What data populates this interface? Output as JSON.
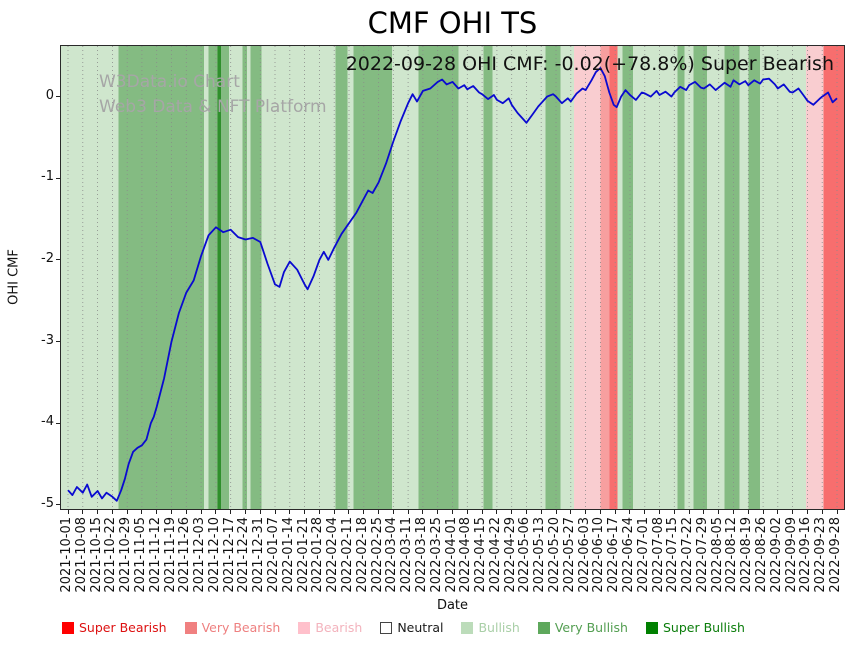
{
  "chart_data": {
    "type": "line",
    "title": "CMF OHI TS",
    "xlabel": "Date",
    "ylabel": "OHI CMF",
    "annotation": "2022-09-28 OHI CMF: -0.02(+78.8%) Super Bearish",
    "as_of_date": "2022-09-28",
    "current_value": -0.02,
    "change_percent": "+78.8%",
    "current_sentiment": "Super Bearish",
    "watermark": {
      "line1": "W3Data.io Chart",
      "line2": "Web3 Data & NFT Platform"
    },
    "ylim": [
      -5.05,
      0.62
    ],
    "yticks": [
      0,
      -1,
      -2,
      -3,
      -4,
      -5
    ],
    "grid": "vertical dotted gridline at every date tick",
    "legend_position": "bottom",
    "x_tick_labels": [
      "2021-10-01",
      "2021-10-08",
      "2021-10-15",
      "2021-10-22",
      "2021-10-29",
      "2021-11-05",
      "2021-11-12",
      "2021-11-19",
      "2021-11-26",
      "2021-12-03",
      "2021-12-10",
      "2021-12-17",
      "2021-12-24",
      "2021-12-31",
      "2022-01-07",
      "2022-01-14",
      "2022-01-21",
      "2022-01-28",
      "2022-02-04",
      "2022-02-11",
      "2022-02-18",
      "2022-02-25",
      "2022-03-04",
      "2022-03-11",
      "2022-03-18",
      "2022-03-25",
      "2022-04-01",
      "2022-04-08",
      "2022-04-15",
      "2022-04-22",
      "2022-04-29",
      "2022-05-06",
      "2022-05-13",
      "2022-05-20",
      "2022-05-27",
      "2022-06-03",
      "2022-06-10",
      "2022-06-17",
      "2022-06-24",
      "2022-07-01",
      "2022-07-08",
      "2022-07-15",
      "2022-07-22",
      "2022-07-29",
      "2022-08-05",
      "2022-08-12",
      "2022-08-19",
      "2022-08-26",
      "2022-09-02",
      "2022-09-09",
      "2022-09-16",
      "2022-09-23",
      "2022-09-28"
    ],
    "series": [
      {
        "name": "OHI CMF",
        "color": "#0a0ad0",
        "points": [
          [
            0,
            -4.82
          ],
          [
            0.3,
            -4.88
          ],
          [
            0.6,
            -4.78
          ],
          [
            1,
            -4.85
          ],
          [
            1.3,
            -4.75
          ],
          [
            1.6,
            -4.9
          ],
          [
            2,
            -4.83
          ],
          [
            2.3,
            -4.92
          ],
          [
            2.6,
            -4.85
          ],
          [
            3,
            -4.9
          ],
          [
            3.3,
            -4.95
          ],
          [
            3.6,
            -4.82
          ],
          [
            3.85,
            -4.68
          ],
          [
            4.1,
            -4.5
          ],
          [
            4.4,
            -4.35
          ],
          [
            4.7,
            -4.3
          ],
          [
            5,
            -4.27
          ],
          [
            5.3,
            -4.2
          ],
          [
            5.6,
            -4.0
          ],
          [
            5.8,
            -3.92
          ],
          [
            6,
            -3.8
          ],
          [
            6.5,
            -3.45
          ],
          [
            7,
            -3.0
          ],
          [
            7.5,
            -2.65
          ],
          [
            8,
            -2.4
          ],
          [
            8.5,
            -2.25
          ],
          [
            9,
            -1.95
          ],
          [
            9.5,
            -1.7
          ],
          [
            10,
            -1.6
          ],
          [
            10.5,
            -1.66
          ],
          [
            11,
            -1.63
          ],
          [
            11.5,
            -1.72
          ],
          [
            12,
            -1.75
          ],
          [
            12.5,
            -1.73
          ],
          [
            13,
            -1.78
          ],
          [
            13.5,
            -2.05
          ],
          [
            14,
            -2.3
          ],
          [
            14.3,
            -2.33
          ],
          [
            14.6,
            -2.15
          ],
          [
            15,
            -2.02
          ],
          [
            15.5,
            -2.12
          ],
          [
            16,
            -2.3
          ],
          [
            16.2,
            -2.36
          ],
          [
            16.6,
            -2.2
          ],
          [
            17,
            -2.0
          ],
          [
            17.3,
            -1.9
          ],
          [
            17.6,
            -2.0
          ],
          [
            18,
            -1.85
          ],
          [
            18.5,
            -1.68
          ],
          [
            19,
            -1.55
          ],
          [
            19.5,
            -1.42
          ],
          [
            20,
            -1.25
          ],
          [
            20.3,
            -1.15
          ],
          [
            20.6,
            -1.18
          ],
          [
            21,
            -1.05
          ],
          [
            21.5,
            -0.82
          ],
          [
            22,
            -0.55
          ],
          [
            22.5,
            -0.3
          ],
          [
            23,
            -0.08
          ],
          [
            23.3,
            0.03
          ],
          [
            23.6,
            -0.06
          ],
          [
            24,
            0.07
          ],
          [
            24.5,
            0.1
          ],
          [
            25,
            0.18
          ],
          [
            25.3,
            0.21
          ],
          [
            25.6,
            0.15
          ],
          [
            26,
            0.18
          ],
          [
            26.4,
            0.1
          ],
          [
            26.8,
            0.14
          ],
          [
            27,
            0.09
          ],
          [
            27.4,
            0.13
          ],
          [
            27.8,
            0.05
          ],
          [
            28,
            0.03
          ],
          [
            28.4,
            -0.03
          ],
          [
            28.8,
            0.02
          ],
          [
            29,
            -0.04
          ],
          [
            29.4,
            -0.08
          ],
          [
            29.8,
            -0.02
          ],
          [
            30,
            -0.1
          ],
          [
            30.4,
            -0.2
          ],
          [
            30.8,
            -0.28
          ],
          [
            31,
            -0.32
          ],
          [
            31.4,
            -0.22
          ],
          [
            31.8,
            -0.12
          ],
          [
            32,
            -0.08
          ],
          [
            32.4,
            0
          ],
          [
            32.8,
            0.03
          ],
          [
            33,
            0
          ],
          [
            33.4,
            -0.08
          ],
          [
            33.8,
            -0.02
          ],
          [
            34,
            -0.06
          ],
          [
            34.4,
            0.04
          ],
          [
            34.8,
            0.1
          ],
          [
            35,
            0.08
          ],
          [
            35.4,
            0.2
          ],
          [
            35.7,
            0.3
          ],
          [
            36,
            0.35
          ],
          [
            36.3,
            0.25
          ],
          [
            36.6,
            0.05
          ],
          [
            36.9,
            -0.1
          ],
          [
            37.1,
            -0.13
          ],
          [
            37.4,
            0
          ],
          [
            37.7,
            0.08
          ],
          [
            38,
            0.02
          ],
          [
            38.4,
            -0.04
          ],
          [
            38.8,
            0.05
          ],
          [
            39,
            0.04
          ],
          [
            39.4,
            0
          ],
          [
            39.8,
            0.07
          ],
          [
            40,
            0.02
          ],
          [
            40.4,
            0.06
          ],
          [
            40.8,
            0
          ],
          [
            41,
            0.05
          ],
          [
            41.4,
            0.12
          ],
          [
            41.8,
            0.08
          ],
          [
            42,
            0.14
          ],
          [
            42.4,
            0.18
          ],
          [
            42.8,
            0.11
          ],
          [
            43,
            0.1
          ],
          [
            43.4,
            0.15
          ],
          [
            43.8,
            0.08
          ],
          [
            44,
            0.11
          ],
          [
            44.4,
            0.17
          ],
          [
            44.8,
            0.12
          ],
          [
            45,
            0.2
          ],
          [
            45.4,
            0.15
          ],
          [
            45.8,
            0.19
          ],
          [
            46,
            0.14
          ],
          [
            46.4,
            0.2
          ],
          [
            46.8,
            0.16
          ],
          [
            47,
            0.21
          ],
          [
            47.4,
            0.22
          ],
          [
            47.8,
            0.15
          ],
          [
            48,
            0.1
          ],
          [
            48.4,
            0.15
          ],
          [
            48.8,
            0.06
          ],
          [
            49,
            0.05
          ],
          [
            49.4,
            0.1
          ],
          [
            49.8,
            0
          ],
          [
            50,
            -0.05
          ],
          [
            50.4,
            -0.1
          ],
          [
            50.8,
            -0.03
          ],
          [
            51,
            0
          ],
          [
            51.4,
            0.05
          ],
          [
            51.7,
            -0.07
          ],
          [
            52,
            -0.02
          ]
        ]
      }
    ],
    "band_colors": {
      "bullish": "#cfe6cd",
      "very_bullish": "#84bb82",
      "super_bullish": "#2f8f2c",
      "bearish": "#f9cdd0",
      "very_bearish": "#f79f9f",
      "super_bearish": "#f76e6e"
    },
    "background_bands": [
      [
        0,
        3.4,
        "bullish"
      ],
      [
        3.4,
        9.2,
        "very_bullish"
      ],
      [
        9.2,
        9.5,
        "bullish"
      ],
      [
        9.5,
        10.1,
        "very_bullish"
      ],
      [
        10.1,
        10.35,
        "super_bullish"
      ],
      [
        10.35,
        10.9,
        "very_bullish"
      ],
      [
        10.9,
        11.8,
        "bullish"
      ],
      [
        11.8,
        12.1,
        "very_bullish"
      ],
      [
        12.1,
        12.35,
        "bullish"
      ],
      [
        12.35,
        13.1,
        "very_bullish"
      ],
      [
        13.1,
        18.1,
        "bullish"
      ],
      [
        18.1,
        18.9,
        "very_bullish"
      ],
      [
        18.9,
        19.3,
        "bullish"
      ],
      [
        19.3,
        21.9,
        "very_bullish"
      ],
      [
        21.9,
        23.7,
        "bullish"
      ],
      [
        23.7,
        26.4,
        "very_bullish"
      ],
      [
        26.4,
        28.1,
        "bullish"
      ],
      [
        28.1,
        28.7,
        "very_bullish"
      ],
      [
        28.7,
        32.3,
        "bullish"
      ],
      [
        32.3,
        33.3,
        "very_bullish"
      ],
      [
        33.3,
        34.2,
        "bullish"
      ],
      [
        34.2,
        36.0,
        "bearish"
      ],
      [
        36.0,
        36.6,
        "very_bearish"
      ],
      [
        36.6,
        37.15,
        "super_bearish"
      ],
      [
        37.15,
        37.5,
        "bullish"
      ],
      [
        37.5,
        38.2,
        "very_bullish"
      ],
      [
        38.2,
        41.2,
        "bullish"
      ],
      [
        41.2,
        41.7,
        "very_bullish"
      ],
      [
        41.7,
        42.3,
        "bullish"
      ],
      [
        42.3,
        43.2,
        "very_bullish"
      ],
      [
        43.2,
        44.4,
        "bullish"
      ],
      [
        44.4,
        45.4,
        "very_bullish"
      ],
      [
        45.4,
        46.0,
        "bullish"
      ],
      [
        46.0,
        46.8,
        "very_bullish"
      ],
      [
        46.8,
        49.9,
        "bullish"
      ],
      [
        49.9,
        51.1,
        "bearish"
      ],
      [
        51.1,
        52,
        "super_bearish"
      ]
    ],
    "legend": [
      {
        "label": "Super Bearish",
        "swatch": "#ff0000",
        "text_color": "#dd1111"
      },
      {
        "label": "Very Bearish",
        "swatch": "#f08080",
        "text_color": "#ee8080"
      },
      {
        "label": "Bearish",
        "swatch": "#ffc0cb",
        "text_color": "#f3b3bd"
      },
      {
        "label": "Neutral",
        "swatch": "#ffffff",
        "text_color": "#1a1a1a",
        "swatch_border": true
      },
      {
        "label": "Bullish",
        "swatch": "#bcdcba",
        "text_color": "#a9cfa7"
      },
      {
        "label": "Very Bullish",
        "swatch": "#5ea85c",
        "text_color": "#539e51"
      },
      {
        "label": "Super Bullish",
        "swatch": "#008000",
        "text_color": "#0b7d0b"
      }
    ]
  }
}
